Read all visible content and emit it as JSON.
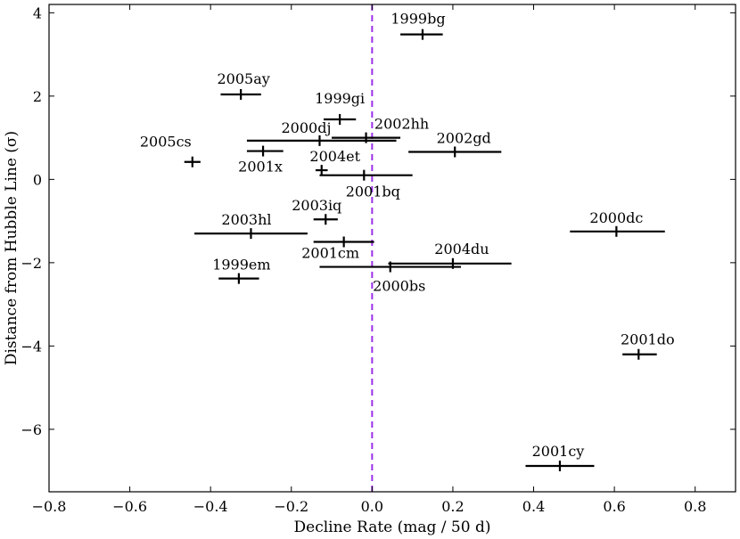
{
  "chart_data": {
    "type": "scatter",
    "title": "",
    "xlabel": "Decline Rate (mag / 50 d)",
    "ylabel": "Distance from Hubble Line (σ)",
    "xlim": [
      -0.8,
      0.9
    ],
    "ylim": [
      -7.5,
      4.2
    ],
    "x_ticks": [
      -0.8,
      -0.6,
      -0.4,
      -0.2,
      0.0,
      0.2,
      0.4,
      0.6,
      0.8
    ],
    "x_tick_labels": [
      "−0.8",
      "−0.6",
      "−0.4",
      "−0.2",
      "0.0",
      "0.2",
      "0.4",
      "0.6",
      "0.8"
    ],
    "y_ticks": [
      -6,
      -4,
      -2,
      0,
      2,
      4
    ],
    "y_tick_labels": [
      "−6",
      "−4",
      "−2",
      "0",
      "2",
      "4"
    ],
    "grid": false,
    "reference_line": {
      "axis": "x",
      "value": 0.0,
      "style": "dashed",
      "color": "#9b30e8"
    },
    "point_color": "#000000",
    "points": [
      {
        "name": "1999bg",
        "x": 0.125,
        "y": 3.48,
        "xmin": 0.07,
        "xmax": 0.175
      },
      {
        "name": "2005ay",
        "x": -0.325,
        "y": 2.04,
        "xmin": -0.375,
        "xmax": -0.275
      },
      {
        "name": "1999gi",
        "x": -0.08,
        "y": 1.44,
        "xmin": -0.12,
        "xmax": -0.04
      },
      {
        "name": "2000dj",
        "x": -0.13,
        "y": 0.93,
        "xmin": -0.31,
        "xmax": 0.06
      },
      {
        "name": "2002hh",
        "x": -0.015,
        "y": 1.0,
        "xmin": -0.1,
        "xmax": 0.07
      },
      {
        "name": "2005cs",
        "x": -0.445,
        "y": 0.42,
        "xmin": -0.465,
        "xmax": -0.425
      },
      {
        "name": "2001x",
        "x": -0.27,
        "y": 0.68,
        "xmin": -0.31,
        "xmax": -0.22
      },
      {
        "name": "2002gd",
        "x": 0.205,
        "y": 0.66,
        "xmin": 0.09,
        "xmax": 0.32
      },
      {
        "name": "2004et",
        "x": -0.125,
        "y": 0.22,
        "xmin": -0.14,
        "xmax": -0.11
      },
      {
        "name": "2001bq",
        "x": -0.02,
        "y": 0.1,
        "xmin": -0.13,
        "xmax": 0.1
      },
      {
        "name": "2003iq",
        "x": -0.115,
        "y": -0.96,
        "xmin": -0.145,
        "xmax": -0.085
      },
      {
        "name": "2003hl",
        "x": -0.3,
        "y": -1.3,
        "xmin": -0.44,
        "xmax": -0.16
      },
      {
        "name": "2001cm",
        "x": -0.07,
        "y": -1.5,
        "xmin": -0.145,
        "xmax": 0.005
      },
      {
        "name": "2004du",
        "x": 0.2,
        "y": -2.02,
        "xmin": 0.04,
        "xmax": 0.345
      },
      {
        "name": "2000bs",
        "x": 0.045,
        "y": -2.1,
        "xmin": -0.13,
        "xmax": 0.22
      },
      {
        "name": "1999em",
        "x": -0.33,
        "y": -2.38,
        "xmin": -0.38,
        "xmax": -0.28
      },
      {
        "name": "2000dc",
        "x": 0.605,
        "y": -1.25,
        "xmin": 0.49,
        "xmax": 0.725
      },
      {
        "name": "2001do",
        "x": 0.66,
        "y": -4.2,
        "xmin": 0.62,
        "xmax": 0.705
      },
      {
        "name": "2001cy",
        "x": 0.465,
        "y": -6.88,
        "xmin": 0.38,
        "xmax": 0.55
      }
    ]
  }
}
